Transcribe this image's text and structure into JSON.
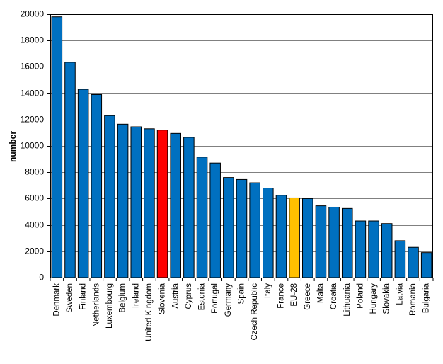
{
  "chart_data": {
    "type": "bar",
    "title": "",
    "xlabel": "",
    "ylabel": "number",
    "ylim": [
      0,
      20000
    ],
    "yticks": [
      0,
      2000,
      4000,
      6000,
      8000,
      10000,
      12000,
      14000,
      16000,
      18000,
      20000
    ],
    "grid": true,
    "legend": "none",
    "categories": [
      "Denmark",
      "Sweden",
      "Finland",
      "Netherlands",
      "Luxembourg",
      "Belgium",
      "Ireland",
      "United Kingdom",
      "Slovenia",
      "Austria",
      "Cyprus",
      "Estonia",
      "Portugal",
      "Germany",
      "Spain",
      "Czech Republic",
      "Italy",
      "France",
      "EU-28",
      "Greece",
      "Malta",
      "Croatia",
      "Lithuania",
      "Poland",
      "Hungary",
      "Slovakia",
      "Latvia",
      "Romania",
      "Bulgaria"
    ],
    "values": [
      19800,
      16350,
      14300,
      13900,
      12300,
      11650,
      11450,
      11300,
      11200,
      10950,
      10650,
      9150,
      8700,
      7600,
      7450,
      7200,
      6800,
      6250,
      6050,
      6000,
      5450,
      5350,
      5250,
      4300,
      4300,
      4100,
      2800,
      2300,
      1900
    ],
    "colors": {
      "default": "#0070C0",
      "highlight": "#FF0000",
      "aggregate": "#FFC000",
      "border": "#000000",
      "grid": "#808080"
    },
    "highlight_categories": {
      "Slovenia": "highlight",
      "EU-28": "aggregate"
    }
  }
}
